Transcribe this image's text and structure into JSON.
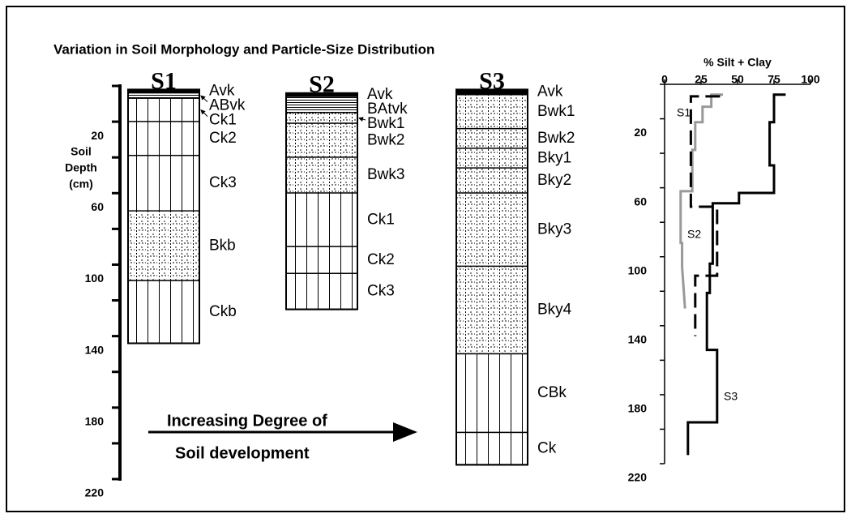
{
  "title": "Variation in Soil Morphology and Particle-Size Distribution",
  "depth_axis": {
    "label_lines": [
      "Soil",
      "Depth",
      "(cm)"
    ],
    "lim": [
      0,
      220
    ],
    "ticks": [
      0,
      20,
      40,
      60,
      80,
      100,
      120,
      140,
      160,
      180,
      200,
      220
    ],
    "labeled_ticks": [
      20,
      60,
      100,
      140,
      180,
      220
    ]
  },
  "profiles": [
    {
      "name": "S1",
      "top": 2,
      "horizons": [
        {
          "name": "Avk",
          "bottom": 4,
          "pattern": "solid"
        },
        {
          "name": "ABvk",
          "bottom": 7,
          "pattern": "lines"
        },
        {
          "name": "Ck1",
          "bottom": 20,
          "pattern": "columns"
        },
        {
          "name": "Ck2",
          "bottom": 39,
          "pattern": "columns"
        },
        {
          "name": "Ck3",
          "bottom": 70,
          "pattern": "columns"
        },
        {
          "name": "Bkb",
          "bottom": 109,
          "pattern": "dots"
        },
        {
          "name": "Ckb",
          "bottom": 144,
          "pattern": "columns"
        }
      ]
    },
    {
      "name": "S2",
      "top": 4,
      "horizons": [
        {
          "name": "Avk",
          "bottom": 6,
          "pattern": "solid"
        },
        {
          "name": "BAtvk",
          "bottom": 15,
          "pattern": "lines"
        },
        {
          "name": "Bwk1",
          "bottom": 21,
          "pattern": "dots"
        },
        {
          "name": "Bwk2",
          "bottom": 40,
          "pattern": "dots"
        },
        {
          "name": "Bwk3",
          "bottom": 60,
          "pattern": "dots"
        },
        {
          "name": "Ck1",
          "bottom": 90,
          "pattern": "columns"
        },
        {
          "name": "Ck2",
          "bottom": 105,
          "pattern": "columns"
        },
        {
          "name": "Ck3",
          "bottom": 125,
          "pattern": "columns"
        }
      ]
    },
    {
      "name": "S3",
      "top": 2,
      "horizons": [
        {
          "name": "Avk",
          "bottom": 5,
          "pattern": "solid"
        },
        {
          "name": "Bwk1",
          "bottom": 24,
          "pattern": "dots"
        },
        {
          "name": "Bwk2",
          "bottom": 35,
          "pattern": "dots"
        },
        {
          "name": "Bky1",
          "bottom": 46,
          "pattern": "dots"
        },
        {
          "name": "Bky2",
          "bottom": 60,
          "pattern": "dots"
        },
        {
          "name": "Bky3",
          "bottom": 101,
          "pattern": "dots"
        },
        {
          "name": "Bky4",
          "bottom": 150,
          "pattern": "dots"
        },
        {
          "name": "CBk",
          "bottom": 194,
          "pattern": "columns"
        },
        {
          "name": "Ck",
          "bottom": 212,
          "pattern": "columns"
        }
      ]
    }
  ],
  "arrow_text": [
    "Increasing Degree of",
    "Soil development"
  ],
  "chart_data": {
    "type": "line",
    "title": "% Silt + Clay",
    "xlim": [
      0,
      100
    ],
    "xticks": [
      0,
      25,
      50,
      75,
      100
    ],
    "ylim": [
      0,
      220
    ],
    "yticks": [
      0,
      20,
      40,
      60,
      80,
      100,
      120,
      140,
      160,
      180,
      200,
      220
    ],
    "ytick_labels": [
      20,
      60,
      100,
      140,
      180,
      220
    ],
    "series": [
      {
        "name": "S1",
        "color": "#999999",
        "dash": "solid",
        "values": [
          40,
          32,
          32,
          26,
          26,
          21,
          21,
          19,
          19,
          11,
          11,
          12,
          12,
          14
        ],
        "depth": [
          6,
          6,
          13,
          13,
          22,
          22,
          38,
          38,
          62,
          62,
          92,
          92,
          106,
          130
        ]
      },
      {
        "name": "S2",
        "color": "#000000",
        "dash": "dashed",
        "values": [
          38,
          18,
          18,
          36,
          36,
          21,
          21
        ],
        "depth": [
          7,
          7,
          71,
          71,
          111,
          111,
          146
        ]
      },
      {
        "name": "S3",
        "color": "#000000",
        "dash": "solid",
        "values": [
          83,
          75,
          75,
          72,
          72,
          75,
          75,
          51,
          51,
          33,
          33,
          31,
          31,
          29,
          29,
          36,
          36,
          16,
          16
        ],
        "depth": [
          6,
          6,
          22,
          22,
          47,
          47,
          63,
          63,
          69,
          69,
          104,
          104,
          121,
          121,
          154,
          154,
          196,
          196,
          215
        ]
      }
    ]
  }
}
